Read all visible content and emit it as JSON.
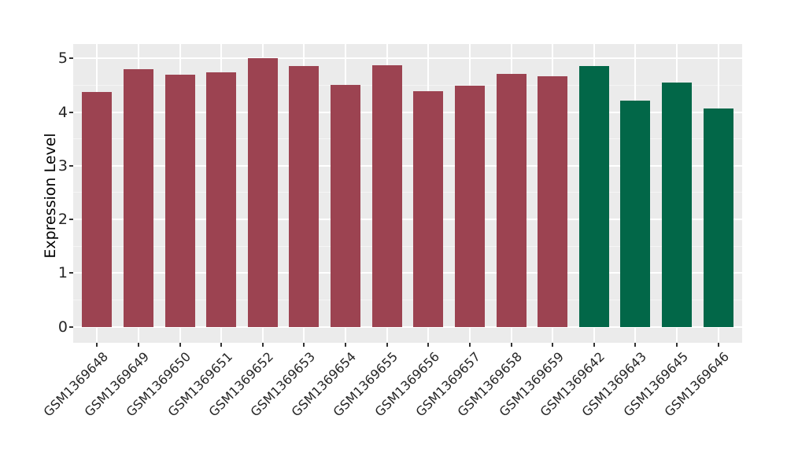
{
  "chart_data": {
    "type": "bar",
    "title": "",
    "xlabel": "",
    "ylabel": "Expression Level",
    "ylim": [
      0,
      5.27
    ],
    "yticks": [
      0,
      1,
      2,
      3,
      4,
      5
    ],
    "ytick_labels": [
      "0",
      "1",
      "2",
      "3",
      "4",
      "5"
    ],
    "grid": "on",
    "legend": "none",
    "x_label_angle_deg": 45,
    "categories": [
      "GSM1369648",
      "GSM1369649",
      "GSM1369650",
      "GSM1369651",
      "GSM1369652",
      "GSM1369653",
      "GSM1369654",
      "GSM1369655",
      "GSM1369656",
      "GSM1369657",
      "GSM1369658",
      "GSM1369659",
      "GSM1369642",
      "GSM1369643",
      "GSM1369645",
      "GSM1369646"
    ],
    "values": [
      4.37,
      4.8,
      4.69,
      4.74,
      5.0,
      4.85,
      4.5,
      4.87,
      4.39,
      4.49,
      4.71,
      4.66,
      4.86,
      4.21,
      4.55,
      4.07
    ],
    "bar_colors": [
      "#9C4351",
      "#9C4351",
      "#9C4351",
      "#9C4351",
      "#9C4351",
      "#9C4351",
      "#9C4351",
      "#9C4351",
      "#9C4351",
      "#9C4351",
      "#9C4351",
      "#9C4351",
      "#026748",
      "#026748",
      "#026748",
      "#026748"
    ],
    "groups": [
      {
        "name": "maroon-group",
        "color": "#9C4351",
        "categories": [
          "GSM1369648",
          "GSM1369649",
          "GSM1369650",
          "GSM1369651",
          "GSM1369652",
          "GSM1369653",
          "GSM1369654",
          "GSM1369655",
          "GSM1369656",
          "GSM1369657",
          "GSM1369658",
          "GSM1369659"
        ]
      },
      {
        "name": "green-group",
        "color": "#026748",
        "categories": [
          "GSM1369642",
          "GSM1369643",
          "GSM1369645",
          "GSM1369646"
        ]
      }
    ]
  },
  "colors": {
    "figure_background": "#FFFFFF",
    "panel_background": "#EBEBEB",
    "grid_major": "#FFFFFF",
    "grid_minor": "#F5F5F5",
    "tick_mark": "#333333",
    "tick_text": "#262626",
    "axis_title_text": "#000000"
  }
}
